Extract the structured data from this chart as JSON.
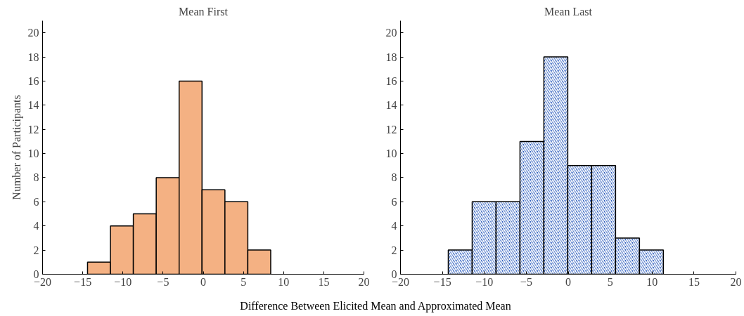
{
  "chart_data": [
    {
      "type": "histogram",
      "title": "Mean First",
      "ylabel": "Number of Participants",
      "xlabel": "Difference Between Elicited Mean and Approximated Mean",
      "bins": [
        -14.4,
        -11.55,
        -8.7,
        -5.85,
        -3,
        -0.15,
        2.7,
        5.55,
        8.4
      ],
      "values": [
        1,
        4,
        5,
        8,
        16,
        7,
        6,
        2
      ],
      "color": "#f4b183",
      "xlim": [
        -20,
        20
      ],
      "xticks": [
        -20,
        -15,
        -10,
        -5,
        0,
        5,
        10,
        15,
        20
      ],
      "ylim": [
        0,
        21
      ],
      "yticks": [
        0,
        2,
        4,
        6,
        8,
        10,
        12,
        14,
        16,
        18,
        20
      ],
      "grid": false
    },
    {
      "type": "histogram",
      "title": "Mean Last",
      "bins": [
        -14.3,
        -11.45,
        -8.6,
        -5.75,
        -2.9,
        -0.05,
        2.8,
        5.65,
        8.5,
        11.35
      ],
      "values": [
        2,
        6,
        6,
        11,
        18,
        9,
        9,
        3,
        2
      ],
      "color": "#2f5fbf",
      "xlim": [
        -20,
        20
      ],
      "xticks": [
        -20,
        -15,
        -10,
        -5,
        0,
        5,
        10,
        15,
        20
      ],
      "ylim": [
        0,
        21
      ],
      "yticks": [
        0,
        2,
        4,
        6,
        8,
        10,
        12,
        14,
        16,
        18,
        20
      ],
      "grid": false
    }
  ]
}
